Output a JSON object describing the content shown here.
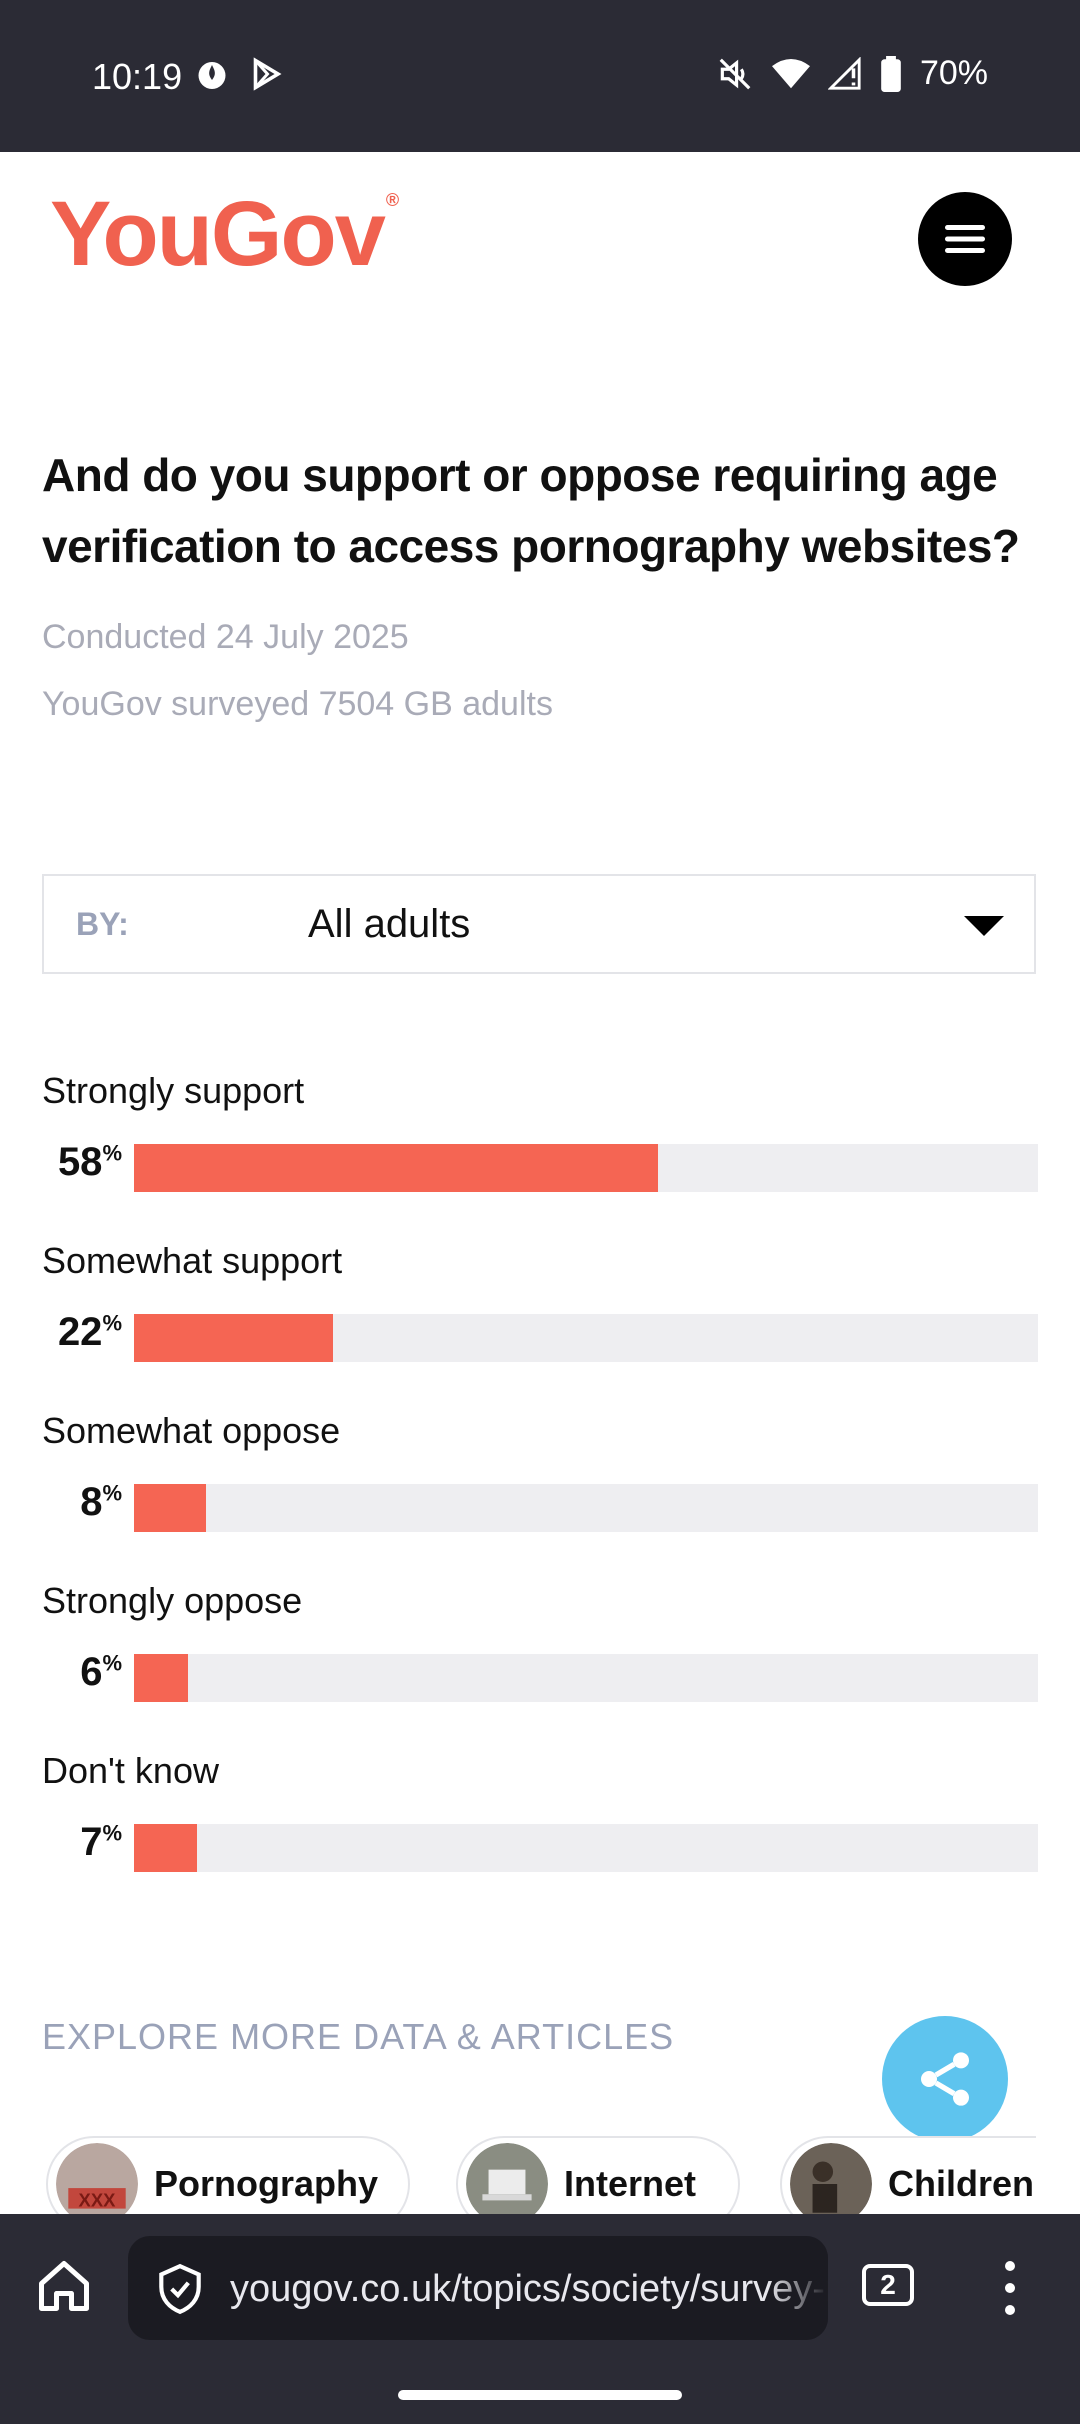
{
  "status_bar": {
    "time": "10:19",
    "battery": "70%"
  },
  "header": {
    "logo_text": "YouGov",
    "logo_mark": "®",
    "menu_icon": "hamburger-icon"
  },
  "question": "And do you support or oppose requiring age verification to access pornography websites?",
  "conducted": "Conducted 24 July 2025",
  "surveyed": "YouGov surveyed 7504 GB adults",
  "filter": {
    "label": "BY:",
    "value": "All adults"
  },
  "results": [
    {
      "label": "Strongly support",
      "pct": "58",
      "value": 58
    },
    {
      "label": "Somewhat support",
      "pct": "22",
      "value": 22
    },
    {
      "label": "Somewhat oppose",
      "pct": "8",
      "value": 8
    },
    {
      "label": "Strongly oppose",
      "pct": "6",
      "value": 6
    },
    {
      "label": "Don't know",
      "pct": "7",
      "value": 7
    }
  ],
  "pct_symbol": "%",
  "explore": {
    "title": "EXPLORE MORE DATA & ARTICLES"
  },
  "chips": [
    {
      "label": "Pornography"
    },
    {
      "label": "Internet"
    },
    {
      "label": "Children"
    }
  ],
  "browser": {
    "url": "yougov.co.uk/topics/society/survey-results",
    "tabs_count": "2"
  },
  "colors": {
    "brand": "#f0614f",
    "bar": "#f56553",
    "track": "#eeeef1",
    "share": "#5ec4ee"
  }
}
